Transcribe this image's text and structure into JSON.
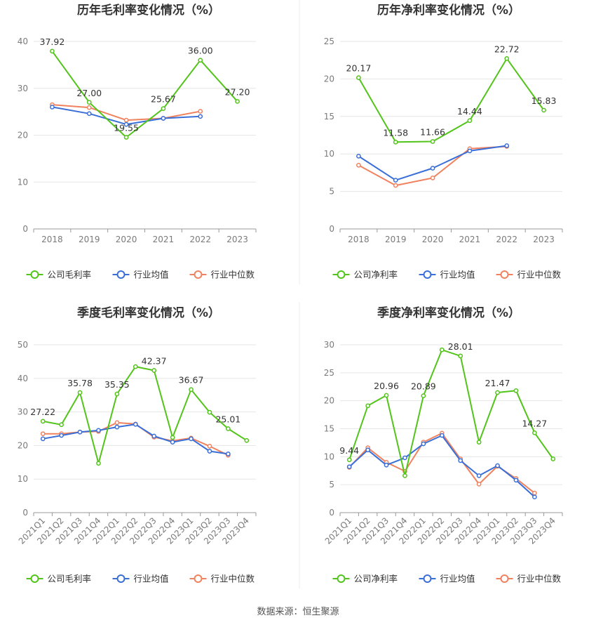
{
  "colors": {
    "company": "#52c41a",
    "avg": "#3a6fd8",
    "median": "#f0825f",
    "grid": "#e6e6e6",
    "axis": "#999999"
  },
  "legend": {
    "gross": [
      "公司毛利率",
      "行业均值",
      "行业中位数"
    ],
    "net": [
      "公司净利率",
      "行业均值",
      "行业中位数"
    ]
  },
  "source_text": "数据来源：恒生聚源",
  "chart_data": [
    {
      "type": "line",
      "title": "历年毛利率变化情况（%）",
      "categories": [
        "2018",
        "2019",
        "2020",
        "2021",
        "2022",
        "2023"
      ],
      "ylim": [
        0,
        40
      ],
      "yticks": [
        0,
        10,
        20,
        30,
        40
      ],
      "grid": true,
      "legend_position": "bottom",
      "series": [
        {
          "name": "公司毛利率",
          "values": [
            37.92,
            27.0,
            19.55,
            25.67,
            36.0,
            27.2
          ],
          "labels": [
            "37.92",
            "27.00",
            "19.55",
            "25.67",
            "36.00",
            "27.20"
          ]
        },
        {
          "name": "行业均值",
          "values": [
            26.0,
            24.6,
            22.3,
            23.6,
            24.0,
            null
          ]
        },
        {
          "name": "行业中位数",
          "values": [
            26.5,
            25.9,
            23.2,
            23.6,
            25.1,
            null
          ]
        }
      ]
    },
    {
      "type": "line",
      "title": "历年净利率变化情况（%）",
      "categories": [
        "2018",
        "2019",
        "2020",
        "2021",
        "2022",
        "2023"
      ],
      "ylim": [
        0,
        25
      ],
      "yticks": [
        0,
        5,
        10,
        15,
        20,
        25
      ],
      "grid": true,
      "legend_position": "bottom",
      "series": [
        {
          "name": "公司净利率",
          "values": [
            20.17,
            11.58,
            11.66,
            14.44,
            22.72,
            15.83
          ],
          "labels": [
            "20.17",
            "11.58",
            "11.66",
            "14.44",
            "22.72",
            "15.83"
          ]
        },
        {
          "name": "行业均值",
          "values": [
            9.7,
            6.5,
            8.1,
            10.4,
            11.1,
            null
          ]
        },
        {
          "name": "行业中位数",
          "values": [
            8.5,
            5.8,
            6.8,
            10.7,
            11.0,
            null
          ]
        }
      ]
    },
    {
      "type": "line",
      "title": "季度毛利率变化情况（%）",
      "categories": [
        "2021Q1",
        "2021Q2",
        "2021Q3",
        "2021Q4",
        "2022Q1",
        "2022Q2",
        "2022Q3",
        "2022Q4",
        "2023Q1",
        "2023Q2",
        "2023Q3",
        "2023Q4"
      ],
      "ylim": [
        0,
        50
      ],
      "yticks": [
        0,
        10,
        20,
        30,
        40,
        50
      ],
      "grid": true,
      "legend_position": "bottom",
      "series": [
        {
          "name": "公司毛利率",
          "values": [
            27.22,
            26.2,
            35.78,
            14.7,
            35.35,
            43.5,
            42.37,
            22.4,
            36.67,
            29.9,
            25.01,
            21.5
          ],
          "labels": [
            "27.22",
            "",
            "35.78",
            "",
            "35.35",
            "",
            "42.37",
            "",
            "36.67",
            "",
            "25.01",
            ""
          ]
        },
        {
          "name": "行业均值",
          "values": [
            22.0,
            23.0,
            24.0,
            24.5,
            25.5,
            26.3,
            22.8,
            21.0,
            22.0,
            18.3,
            17.5,
            null
          ]
        },
        {
          "name": "行业中位数",
          "values": [
            23.5,
            23.5,
            24.0,
            24.2,
            26.8,
            26.4,
            22.5,
            21.4,
            22.2,
            19.8,
            17.1,
            null
          ]
        }
      ]
    },
    {
      "type": "line",
      "title": "季度净利率变化情况（%）",
      "categories": [
        "2021Q1",
        "2021Q2",
        "2021Q3",
        "2021Q4",
        "2022Q1",
        "2022Q2",
        "2022Q3",
        "2022Q4",
        "2023Q1",
        "2023Q2",
        "2023Q3",
        "2023Q4"
      ],
      "ylim": [
        0,
        30
      ],
      "yticks": [
        0,
        5,
        10,
        15,
        20,
        25,
        30
      ],
      "grid": true,
      "legend_position": "bottom",
      "series": [
        {
          "name": "公司净利率",
          "values": [
            9.44,
            19.1,
            20.96,
            6.6,
            20.89,
            29.1,
            28.01,
            12.6,
            21.47,
            21.8,
            14.27,
            9.6
          ],
          "labels": [
            "9.44",
            "",
            "20.96",
            "",
            "20.89",
            "",
            "28.01",
            "",
            "21.47",
            "",
            "14.27",
            ""
          ]
        },
        {
          "name": "行业均值",
          "values": [
            8.2,
            11.2,
            8.5,
            9.8,
            12.3,
            13.8,
            9.3,
            6.6,
            8.4,
            5.8,
            2.8,
            null
          ]
        },
        {
          "name": "行业中位数",
          "values": [
            8.1,
            11.6,
            9.0,
            7.4,
            12.6,
            14.2,
            9.6,
            5.1,
            8.3,
            6.1,
            3.5,
            null
          ]
        }
      ]
    }
  ]
}
